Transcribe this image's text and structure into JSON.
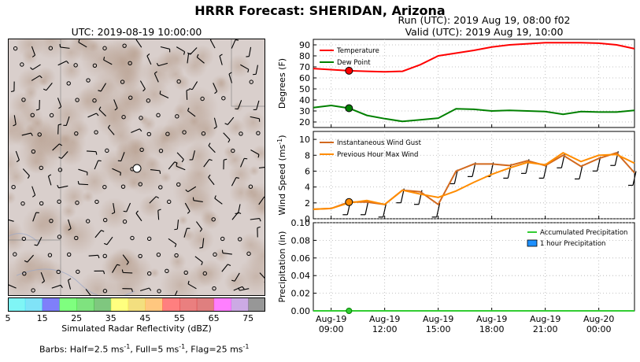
{
  "header": {
    "title": "HRRR Forecast: SHERIDAN, Arizona",
    "run": "Run (UTC): 2019 Aug 19, 08:00 f02",
    "valid": "Valid (UTC): 2019 Aug 19, 10:00"
  },
  "map": {
    "title": "UTC: 2019-08-19 10:00:00",
    "colorbar_label": "Simulated Radar Reflectivity (dBZ)",
    "colorbar_ticks": [
      "5",
      "15",
      "25",
      "35",
      "45",
      "55",
      "65",
      "75"
    ],
    "colorbar_colors": [
      "#00ecec",
      "#02c8f0",
      "#0000f6",
      "#00ff00",
      "#00c800",
      "#009000",
      "#ffff00",
      "#e7c000",
      "#ff9000",
      "#ff0000",
      "#d60000",
      "#c00000",
      "#ff00ff",
      "#9955c9",
      "#303030"
    ],
    "barb_note_parts": [
      "Barbs: Half=2.5 ms",
      "-1",
      ", Full=5 ms",
      "-1",
      ", Flag=25 ms",
      "-1"
    ]
  },
  "x_tick_labels": [
    [
      "Aug-19",
      "09:00"
    ],
    [
      "Aug-19",
      "12:00"
    ],
    [
      "Aug-19",
      "15:00"
    ],
    [
      "Aug-19",
      "18:00"
    ],
    [
      "Aug-19",
      "21:00"
    ],
    [
      "Aug-20",
      "00:00"
    ]
  ],
  "chart_data": [
    {
      "type": "line",
      "x": [
        "2019-08-19 08:00",
        "2019-08-19 09:00",
        "2019-08-19 10:00",
        "2019-08-19 11:00",
        "2019-08-19 12:00",
        "2019-08-19 13:00",
        "2019-08-19 14:00",
        "2019-08-19 15:00",
        "2019-08-19 16:00",
        "2019-08-19 17:00",
        "2019-08-19 18:00",
        "2019-08-19 19:00",
        "2019-08-19 20:00",
        "2019-08-19 21:00",
        "2019-08-19 22:00",
        "2019-08-19 23:00",
        "2019-08-20 00:00",
        "2019-08-20 01:00",
        "2019-08-20 02:00"
      ],
      "series": [
        {
          "name": "Temperature",
          "color": "#ff0000",
          "values": [
            68.5,
            67.5,
            66.5,
            66,
            65.5,
            66,
            72,
            80,
            82.5,
            85,
            88,
            90,
            91,
            92,
            92,
            92,
            91.5,
            90,
            86.5
          ]
        },
        {
          "name": "Dew Point",
          "color": "#008000",
          "values": [
            33,
            35,
            32.5,
            26,
            23,
            20.5,
            22,
            23.5,
            32,
            31.5,
            30,
            30.5,
            30,
            29.5,
            27,
            29.5,
            29,
            29,
            30.5
          ]
        }
      ],
      "marker": {
        "x": "2019-08-19 10:00",
        "temperature": 66.5,
        "dew_point": 32.5
      },
      "ylabel": "Degrees (F)",
      "ylim": [
        15,
        95
      ],
      "yticks": [
        20,
        30,
        40,
        50,
        60,
        70,
        80,
        90
      ],
      "grid": true,
      "legend": "top-left"
    },
    {
      "type": "line",
      "x": [
        "2019-08-19 08:00",
        "2019-08-19 09:00",
        "2019-08-19 10:00",
        "2019-08-19 11:00",
        "2019-08-19 12:00",
        "2019-08-19 13:00",
        "2019-08-19 14:00",
        "2019-08-19 15:00",
        "2019-08-19 16:00",
        "2019-08-19 17:00",
        "2019-08-19 18:00",
        "2019-08-19 19:00",
        "2019-08-19 20:00",
        "2019-08-19 21:00",
        "2019-08-19 22:00",
        "2019-08-19 23:00",
        "2019-08-20 00:00",
        "2019-08-20 01:00",
        "2019-08-20 02:00"
      ],
      "series": [
        {
          "name": "Instantaneous Wind Gust",
          "color": "#d2691e",
          "values": [
            1.2,
            1.3,
            2.1,
            2.1,
            1.8,
            3.6,
            3.4,
            1.8,
            6.0,
            6.9,
            6.9,
            6.7,
            7.3,
            6.7,
            8.0,
            6.6,
            7.6,
            8.3,
            5.8
          ]
        },
        {
          "name": "Previous Hour Max Wind",
          "color": "#ff8c00",
          "values": [
            1.2,
            1.3,
            2.0,
            2.3,
            1.8,
            3.6,
            3.1,
            2.7,
            3.5,
            4.6,
            5.6,
            6.4,
            7.1,
            6.8,
            8.3,
            7.2,
            8.0,
            8.1,
            7.0
          ]
        }
      ],
      "marker": {
        "x": "2019-08-19 10:00",
        "value": 2.1
      },
      "ylabel": "Wind Speed (ms-1)",
      "ylim": [
        0,
        11
      ],
      "yticks": [
        0,
        2,
        4,
        6,
        8,
        10
      ],
      "grid": true,
      "legend": "top-left"
    },
    {
      "type": "line",
      "x": [
        "2019-08-19 08:00",
        "2019-08-20 02:00"
      ],
      "series": [
        {
          "name": "Accumulated Precipitation",
          "color": "#32cd32",
          "values": [
            0.0,
            0.0
          ]
        },
        {
          "name": "1 hour Precipitation",
          "color": "#1e90ff",
          "values": [
            0.0,
            0.0
          ]
        }
      ],
      "marker": {
        "x": "2019-08-19 10:00",
        "value": 0.0
      },
      "ylabel": "Precipitation (in)",
      "ylim": [
        0,
        0.1
      ],
      "yticks": [
        0.0,
        0.02,
        0.04,
        0.06,
        0.08,
        0.1
      ],
      "ytick_labels": [
        "0.00",
        "0.02",
        "0.04",
        "0.06",
        "0.08",
        "0.10"
      ],
      "grid": true,
      "legend": "top-right"
    }
  ]
}
